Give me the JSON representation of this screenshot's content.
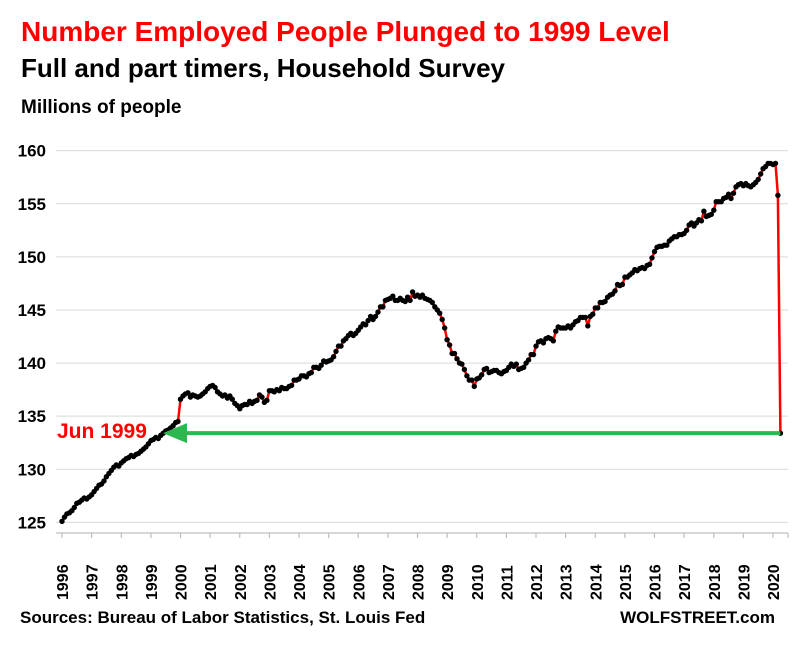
{
  "header": {
    "title": "Number Employed People Plunged to 1999 Level",
    "subtitle": "Full and part timers, Household Survey",
    "unit_label": "Millions of people"
  },
  "annotation": {
    "label": "Jun 1999",
    "value": 133.4,
    "arrow_color": "#2DB750",
    "label_color": "#FF0000"
  },
  "footer": {
    "sources": "Sources: Bureau of Labor Statistics, St. Louis Fed",
    "watermark": "WOLFSTREET.com"
  },
  "colors": {
    "title": "#FF0000",
    "line": "#FF0000",
    "marker": "#000000",
    "grid": "#D9D9D9",
    "axis": "#BFBFBF"
  },
  "chart_data": {
    "type": "line",
    "title": "Number Employed People Plunged to 1999 Level",
    "subtitle": "Full and part timers, Household Survey",
    "ylabel": "Millions of people",
    "series_name": "Employed people, household survey (millions)",
    "freq": "monthly",
    "start": "1996-01",
    "end": "2020-04",
    "ylim": [
      124,
      161
    ],
    "y_ticks": [
      125,
      130,
      135,
      140,
      145,
      150,
      155,
      160
    ],
    "x_years": [
      1996,
      1997,
      1998,
      1999,
      2000,
      2001,
      2002,
      2003,
      2004,
      2005,
      2006,
      2007,
      2008,
      2009,
      2010,
      2011,
      2012,
      2013,
      2014,
      2015,
      2016,
      2017,
      2018,
      2019,
      2020
    ],
    "grid": true,
    "legend": false,
    "values": [
      125.1,
      125.5,
      125.8,
      125.9,
      126.1,
      126.4,
      126.8,
      126.9,
      127.1,
      127.3,
      127.2,
      127.4,
      127.6,
      127.9,
      128.2,
      128.5,
      128.6,
      128.9,
      129.3,
      129.6,
      129.9,
      130.2,
      130.4,
      130.3,
      130.6,
      130.8,
      131.0,
      131.1,
      131.3,
      131.2,
      131.4,
      131.5,
      131.7,
      131.9,
      132.1,
      132.4,
      132.7,
      132.8,
      133.0,
      132.9,
      133.2,
      133.4,
      133.6,
      133.7,
      133.9,
      134.1,
      134.4,
      134.5,
      136.6,
      136.9,
      137.1,
      137.2,
      136.8,
      137.0,
      136.9,
      136.8,
      136.9,
      137.1,
      137.3,
      137.6,
      137.8,
      137.9,
      137.7,
      137.3,
      137.1,
      136.9,
      137.0,
      136.7,
      136.9,
      136.6,
      136.2,
      136.0,
      135.7,
      136.0,
      136.1,
      136.1,
      136.4,
      136.2,
      136.4,
      136.5,
      137.0,
      136.8,
      136.3,
      136.5,
      137.4,
      137.4,
      137.3,
      137.5,
      137.4,
      137.7,
      137.6,
      137.6,
      137.8,
      137.9,
      138.4,
      138.4,
      138.5,
      138.8,
      138.8,
      138.7,
      139.0,
      139.1,
      139.6,
      139.6,
      139.5,
      139.8,
      140.2,
      140.1,
      140.2,
      140.3,
      140.6,
      141.1,
      141.6,
      141.6,
      142.1,
      142.3,
      142.6,
      142.8,
      142.6,
      142.8,
      143.1,
      143.4,
      143.7,
      143.6,
      144.0,
      144.4,
      144.1,
      144.4,
      144.8,
      145.3,
      145.3,
      145.9,
      146.0,
      146.1,
      146.3,
      145.9,
      145.9,
      146.1,
      145.9,
      145.8,
      146.2,
      145.9,
      146.7,
      146.3,
      146.4,
      146.2,
      146.4,
      146.1,
      146.0,
      145.9,
      145.7,
      145.3,
      145.0,
      144.7,
      144.1,
      143.3,
      142.2,
      141.7,
      140.9,
      140.9,
      140.4,
      140.0,
      139.9,
      139.4,
      138.8,
      138.4,
      138.4,
      137.8,
      138.5,
      138.6,
      138.9,
      139.4,
      139.5,
      139.1,
      139.2,
      139.3,
      139.3,
      139.1,
      139.0,
      139.2,
      139.3,
      139.6,
      139.9,
      139.7,
      139.9,
      139.4,
      139.5,
      139.6,
      140.0,
      140.3,
      140.8,
      140.8,
      141.6,
      142.0,
      142.1,
      141.9,
      142.3,
      142.4,
      142.3,
      142.1,
      143.0,
      143.4,
      143.3,
      143.3,
      143.3,
      143.5,
      143.3,
      143.6,
      143.9,
      144.0,
      144.3,
      144.3,
      144.3,
      143.5,
      144.4,
      144.6,
      145.2,
      145.2,
      145.7,
      145.7,
      145.8,
      146.2,
      146.4,
      146.5,
      146.8,
      147.4,
      147.3,
      147.4,
      148.1,
      148.1,
      148.3,
      148.5,
      148.8,
      148.7,
      148.9,
      149.0,
      148.9,
      149.2,
      149.3,
      149.9,
      150.5,
      150.9,
      151.0,
      151.0,
      151.1,
      151.1,
      151.5,
      151.7,
      151.9,
      151.9,
      152.1,
      152.1,
      152.2,
      152.5,
      153.0,
      153.2,
      152.9,
      153.2,
      153.5,
      153.4,
      154.3,
      153.8,
      153.9,
      154.0,
      154.4,
      155.2,
      155.2,
      155.2,
      155.5,
      155.6,
      155.9,
      155.5,
      156.0,
      156.6,
      156.8,
      156.9,
      156.7,
      156.9,
      156.7,
      156.6,
      156.8,
      157.0,
      157.3,
      157.8,
      158.3,
      158.5,
      158.8,
      158.8,
      158.7,
      158.8,
      155.8,
      133.4
    ]
  }
}
